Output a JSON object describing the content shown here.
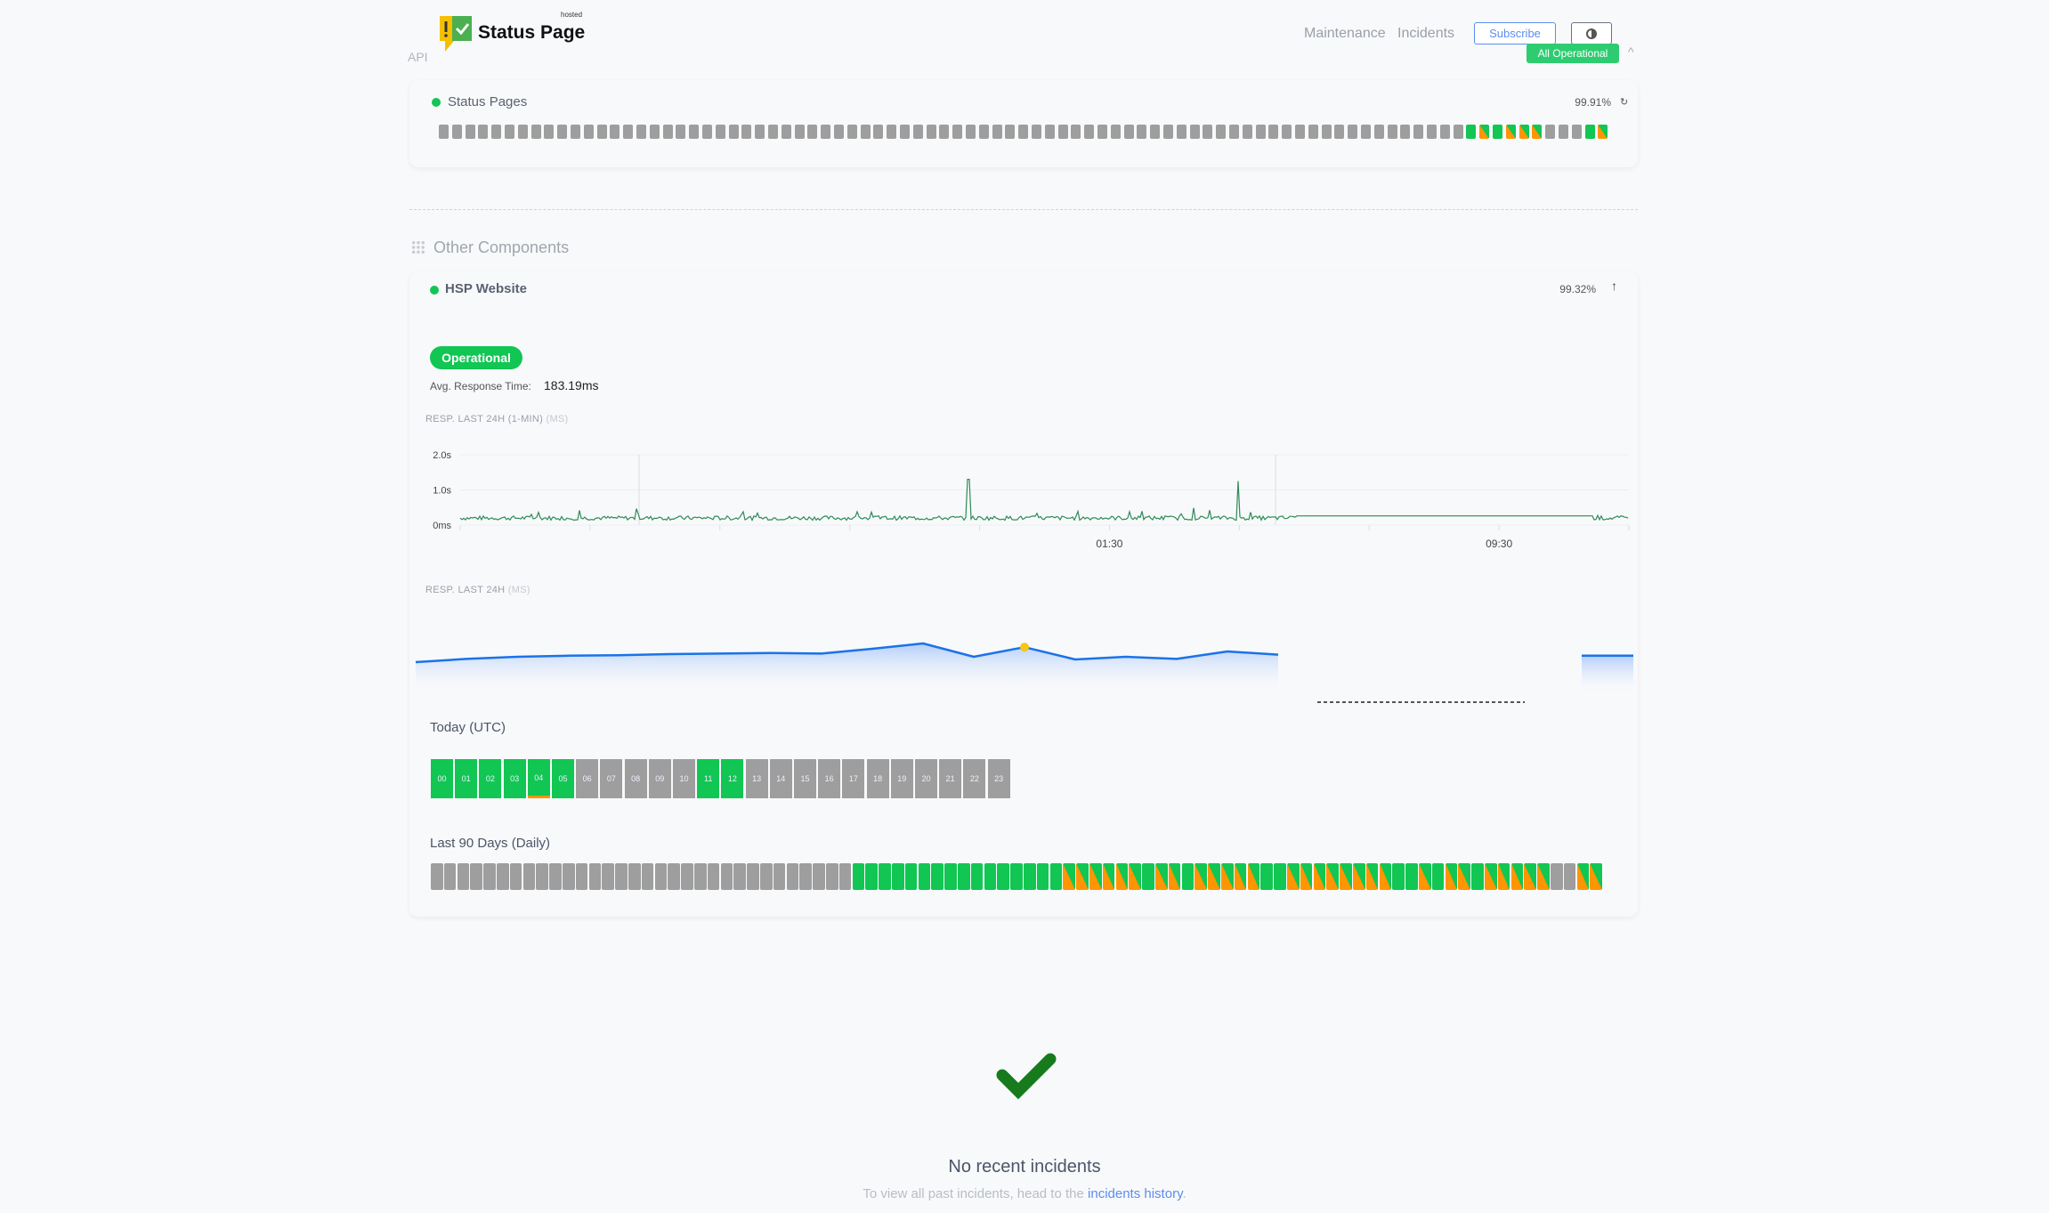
{
  "header": {
    "logo_text": "Status Page",
    "logo_sup": "hosted",
    "api_label": "API",
    "nav": [
      "Maintenance",
      "Incidents"
    ],
    "subscribe_label": "Subscribe",
    "overall_status": "All Operational"
  },
  "colors": {
    "operational": "#11c653",
    "partial": "#ff9500",
    "nodata": "#9e9e9e",
    "accent": "#5b8def",
    "chart_line": "#2e8b57",
    "chart2_line": "#1a73e8",
    "marker": "#f5c518"
  },
  "status_pages": {
    "name": "Status Pages",
    "uptime": "99.91%",
    "bars": "xxxxxxxxxxxxxxxxxxxxxxxxxxxxxxxxxxxxxxxxxxxxxxxxxxxxxxxxxxxxxxxxxxxxxxxxxxxxxxgpgpppxxxgp"
  },
  "other": {
    "title": "Other Components"
  },
  "hsp": {
    "name": "HSP Website",
    "uptime": "99.32%",
    "status": "Operational",
    "avg_label": "Avg. Response Time:",
    "avg_value": "183.19ms",
    "chart1_title": "RESP. LAST 24H (1-MIN)",
    "chart1_unit": "(MS)",
    "chart2_title": "RESP. LAST 24H",
    "chart2_unit": "(MS)",
    "today_label": "Today (UTC)",
    "days_label": "Last 90 Days (Daily)",
    "hours": [
      {
        "h": "00",
        "s": "g"
      },
      {
        "h": "01",
        "s": "g"
      },
      {
        "h": "02",
        "s": "g"
      },
      {
        "h": "03",
        "s": "g"
      },
      {
        "h": "04",
        "s": "g",
        "partial": true
      },
      {
        "h": "05",
        "s": "g"
      },
      {
        "h": "06",
        "s": "x"
      },
      {
        "h": "07",
        "s": "x"
      },
      {
        "h": "08",
        "s": "x"
      },
      {
        "h": "09",
        "s": "x"
      },
      {
        "h": "10",
        "s": "x"
      },
      {
        "h": "11",
        "s": "g"
      },
      {
        "h": "12",
        "s": "g"
      },
      {
        "h": "13",
        "s": "x"
      },
      {
        "h": "14",
        "s": "x"
      },
      {
        "h": "15",
        "s": "x"
      },
      {
        "h": "16",
        "s": "x"
      },
      {
        "h": "17",
        "s": "x"
      },
      {
        "h": "18",
        "s": "x"
      },
      {
        "h": "19",
        "s": "x"
      },
      {
        "h": "20",
        "s": "x"
      },
      {
        "h": "21",
        "s": "x"
      },
      {
        "h": "22",
        "s": "x"
      },
      {
        "h": "23",
        "s": "x"
      }
    ],
    "days": "xxxxxxxxxxxxxxxxxxxxxxxxxxxxxxxxggggggggggggggggppppppgppgpppppggppppppppggpgppgpppppxxpp"
  },
  "chart_data": {
    "type": "line",
    "yticks": [
      "0ms",
      "1.0s",
      "2.0s"
    ],
    "ylim": [
      0,
      2.0
    ],
    "xticks": [
      "01:30",
      "09:30"
    ],
    "baseline_s": 0.2,
    "spikes": [
      {
        "time": "22:36",
        "value": 1.3
      },
      {
        "time": "04:08",
        "value": 1.25
      }
    ],
    "flat_segment": {
      "from": "05:19",
      "to": "11:26",
      "value": 0.26
    }
  },
  "chart2_data": {
    "type": "area",
    "values_ms": [
      180,
      186,
      190,
      192,
      193,
      195,
      196,
      197,
      196,
      205,
      215,
      190,
      208,
      185,
      190,
      186,
      200,
      194,
      null,
      null,
      null,
      null,
      null,
      null,
      192
    ]
  },
  "incidents": {
    "title": "No recent incidents",
    "text": "To view all past incidents, head to the",
    "link": "incidents history",
    "end": "."
  }
}
